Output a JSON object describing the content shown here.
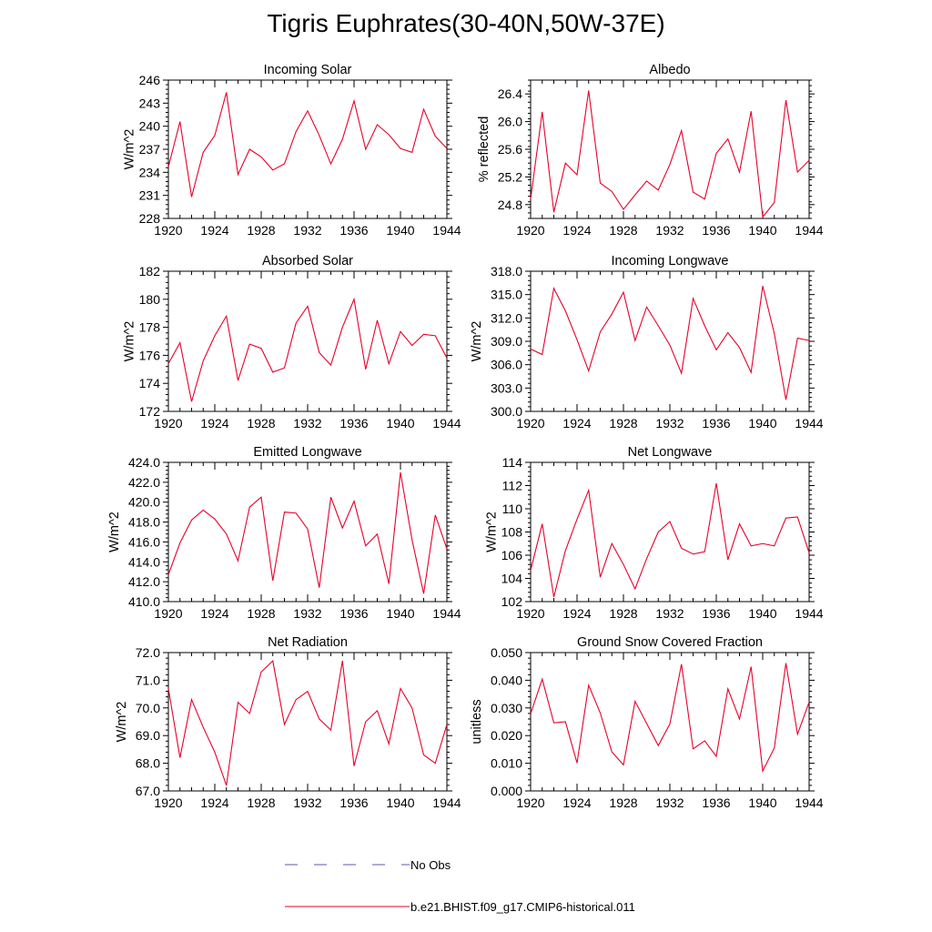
{
  "page": {
    "title": "Tigris Euphrates(30-40N,50W-37E)"
  },
  "legend": {
    "items": [
      {
        "label": "No Obs",
        "color": "#5a5ab4",
        "style": "dashed"
      },
      {
        "label": "b.e21.BHIST.f09_g17.CMIP6-historical.011",
        "color": "#e8002a",
        "style": "solid"
      }
    ]
  },
  "chart_data": [
    {
      "type": "line",
      "title": "Incoming Solar",
      "ylabel": "W/m^2",
      "xlim": [
        1920,
        1944
      ],
      "ylim": [
        228,
        246
      ],
      "xticks": [
        "1920",
        "1924",
        "1928",
        "1932",
        "1936",
        "1940",
        "1944"
      ],
      "yticks": [
        "228",
        "231",
        "234",
        "237",
        "240",
        "243",
        "246"
      ],
      "x": [
        1920,
        1921,
        1922,
        1923,
        1924,
        1925,
        1926,
        1927,
        1928,
        1929,
        1930,
        1931,
        1932,
        1933,
        1934,
        1935,
        1936,
        1937,
        1938,
        1939,
        1940,
        1941,
        1942,
        1943,
        1944
      ],
      "series": [
        {
          "color": "#e8002a",
          "values": [
            234.7,
            240.6,
            230.8,
            236.6,
            238.8,
            244.4,
            233.7,
            237.0,
            236.0,
            234.3,
            235.1,
            239.3,
            242.0,
            238.8,
            235.1,
            238.3,
            243.3,
            237.0,
            240.2,
            238.9,
            237.1,
            236.6,
            242.2,
            238.7,
            237.1
          ]
        }
      ]
    },
    {
      "type": "line",
      "title": "Albedo",
      "ylabel": "% reflected",
      "xlim": [
        1920,
        1944
      ],
      "ylim": [
        24.6,
        26.6
      ],
      "xticks": [
        "1920",
        "1924",
        "1928",
        "1932",
        "1936",
        "1940",
        "1944"
      ],
      "yticks": [
        "24.8",
        "25.2",
        "25.6",
        "26.0",
        "26.4"
      ],
      "x": [
        1920,
        1921,
        1922,
        1923,
        1924,
        1925,
        1926,
        1927,
        1928,
        1929,
        1930,
        1931,
        1932,
        1933,
        1934,
        1935,
        1936,
        1937,
        1938,
        1939,
        1940,
        1941,
        1942,
        1943,
        1944
      ],
      "series": [
        {
          "color": "#e8002a",
          "values": [
            24.88,
            26.14,
            24.69,
            25.4,
            25.23,
            26.45,
            25.11,
            24.99,
            24.73,
            24.94,
            25.14,
            25.01,
            25.38,
            25.87,
            24.98,
            24.88,
            25.54,
            25.75,
            25.27,
            26.15,
            24.62,
            24.83,
            26.31,
            25.27,
            25.44
          ]
        }
      ]
    },
    {
      "type": "line",
      "title": "Absorbed Solar",
      "ylabel": "W/m^2",
      "xlim": [
        1920,
        1944
      ],
      "ylim": [
        172,
        182
      ],
      "xticks": [
        "1920",
        "1924",
        "1928",
        "1932",
        "1936",
        "1940",
        "1944"
      ],
      "yticks": [
        "172",
        "174",
        "176",
        "178",
        "180",
        "182"
      ],
      "x": [
        1920,
        1921,
        1922,
        1923,
        1924,
        1925,
        1926,
        1927,
        1928,
        1929,
        1930,
        1931,
        1932,
        1933,
        1934,
        1935,
        1936,
        1937,
        1938,
        1939,
        1940,
        1941,
        1942,
        1943,
        1944
      ],
      "series": [
        {
          "color": "#e8002a",
          "values": [
            175.4,
            176.9,
            172.7,
            175.6,
            177.4,
            178.8,
            174.2,
            176.8,
            176.5,
            174.8,
            175.1,
            178.3,
            179.5,
            176.2,
            175.3,
            178.0,
            180.0,
            175.0,
            178.5,
            175.4,
            177.7,
            176.7,
            177.5,
            177.4,
            175.8
          ]
        }
      ]
    },
    {
      "type": "line",
      "title": "Incoming Longwave",
      "ylabel": "W/m^2",
      "xlim": [
        1920,
        1944
      ],
      "ylim": [
        300,
        318
      ],
      "xticks": [
        "1920",
        "1924",
        "1928",
        "1932",
        "1936",
        "1940",
        "1944"
      ],
      "yticks": [
        "300.0",
        "303.0",
        "306.0",
        "309.0",
        "312.0",
        "315.0",
        "318.0"
      ],
      "x": [
        1920,
        1921,
        1922,
        1923,
        1924,
        1925,
        1926,
        1927,
        1928,
        1929,
        1930,
        1931,
        1932,
        1933,
        1934,
        1935,
        1936,
        1937,
        1938,
        1939,
        1940,
        1941,
        1942,
        1943,
        1944
      ],
      "series": [
        {
          "color": "#e8002a",
          "values": [
            308.0,
            307.3,
            315.8,
            312.9,
            309.2,
            305.2,
            310.2,
            312.5,
            315.3,
            309.1,
            313.4,
            311.0,
            308.5,
            304.9,
            314.5,
            311.0,
            307.9,
            310.1,
            308.2,
            305.0,
            316.1,
            310.0,
            301.5,
            309.4,
            309.1
          ]
        }
      ]
    },
    {
      "type": "line",
      "title": "Emitted Longwave",
      "ylabel": "W/m^2",
      "xlim": [
        1920,
        1944
      ],
      "ylim": [
        410,
        424
      ],
      "xticks": [
        "1920",
        "1924",
        "1928",
        "1932",
        "1936",
        "1940",
        "1944"
      ],
      "yticks": [
        "410.0",
        "412.0",
        "414.0",
        "416.0",
        "418.0",
        "420.0",
        "422.0",
        "424.0"
      ],
      "x": [
        1920,
        1921,
        1922,
        1923,
        1924,
        1925,
        1926,
        1927,
        1928,
        1929,
        1930,
        1931,
        1932,
        1933,
        1934,
        1935,
        1936,
        1937,
        1938,
        1939,
        1940,
        1941,
        1942,
        1943,
        1944
      ],
      "series": [
        {
          "color": "#e8002a",
          "values": [
            412.7,
            415.9,
            418.2,
            419.2,
            418.3,
            416.8,
            414.1,
            419.5,
            420.5,
            412.1,
            419.0,
            418.9,
            417.3,
            411.4,
            420.5,
            417.4,
            420.1,
            415.6,
            416.8,
            411.8,
            423.0,
            416.2,
            410.8,
            418.7,
            415.3
          ]
        }
      ]
    },
    {
      "type": "line",
      "title": "Net Longwave",
      "ylabel": "W/m^2",
      "xlim": [
        1920,
        1944
      ],
      "ylim": [
        102,
        114
      ],
      "xticks": [
        "1920",
        "1924",
        "1928",
        "1932",
        "1936",
        "1940",
        "1944"
      ],
      "yticks": [
        "102",
        "104",
        "106",
        "108",
        "110",
        "112",
        "114"
      ],
      "x": [
        1920,
        1921,
        1922,
        1923,
        1924,
        1925,
        1926,
        1927,
        1928,
        1929,
        1930,
        1931,
        1932,
        1933,
        1934,
        1935,
        1936,
        1937,
        1938,
        1939,
        1940,
        1941,
        1942,
        1943,
        1944
      ],
      "series": [
        {
          "color": "#e8002a",
          "values": [
            104.7,
            108.7,
            102.4,
            106.4,
            109.1,
            111.6,
            104.1,
            107.0,
            105.2,
            103.1,
            105.7,
            108.0,
            108.9,
            106.6,
            106.1,
            106.3,
            112.2,
            105.6,
            108.7,
            106.8,
            107.0,
            106.8,
            109.2,
            109.3,
            106.2
          ]
        }
      ]
    },
    {
      "type": "line",
      "title": "Net Radiation",
      "ylabel": "W/m^2",
      "xlim": [
        1920,
        1944
      ],
      "ylim": [
        67,
        72
      ],
      "xticks": [
        "1920",
        "1924",
        "1928",
        "1932",
        "1936",
        "1940",
        "1944"
      ],
      "yticks": [
        "67.0",
        "68.0",
        "69.0",
        "70.0",
        "71.0",
        "72.0"
      ],
      "x": [
        1920,
        1921,
        1922,
        1923,
        1924,
        1925,
        1926,
        1927,
        1928,
        1929,
        1930,
        1931,
        1932,
        1933,
        1934,
        1935,
        1936,
        1937,
        1938,
        1939,
        1940,
        1941,
        1942,
        1943,
        1944
      ],
      "series": [
        {
          "color": "#e8002a",
          "values": [
            70.7,
            68.2,
            70.3,
            69.3,
            68.4,
            67.2,
            70.2,
            69.8,
            71.3,
            71.7,
            69.4,
            70.3,
            70.6,
            69.6,
            69.2,
            71.7,
            67.9,
            69.5,
            69.9,
            68.7,
            70.7,
            70.0,
            68.3,
            68.0,
            69.4
          ]
        }
      ]
    },
    {
      "type": "line",
      "title": "Ground Snow Covered Fraction",
      "ylabel": "unitless",
      "xlim": [
        1920,
        1944
      ],
      "ylim": [
        0,
        0.05
      ],
      "xticks": [
        "1920",
        "1924",
        "1928",
        "1932",
        "1936",
        "1940",
        "1944"
      ],
      "yticks": [
        "0.000",
        "0.010",
        "0.020",
        "0.030",
        "0.040",
        "0.050"
      ],
      "x": [
        1920,
        1921,
        1922,
        1923,
        1924,
        1925,
        1926,
        1927,
        1928,
        1929,
        1930,
        1931,
        1932,
        1933,
        1934,
        1935,
        1936,
        1937,
        1938,
        1939,
        1940,
        1941,
        1942,
        1943,
        1944
      ],
      "series": [
        {
          "color": "#e8002a",
          "values": [
            0.0279,
            0.0404,
            0.0246,
            0.025,
            0.0101,
            0.0382,
            0.0282,
            0.0141,
            0.0094,
            0.0324,
            0.0244,
            0.0164,
            0.0242,
            0.0458,
            0.0152,
            0.0181,
            0.0125,
            0.0369,
            0.026,
            0.0449,
            0.0072,
            0.0155,
            0.0462,
            0.0205,
            0.0321
          ]
        }
      ]
    }
  ]
}
